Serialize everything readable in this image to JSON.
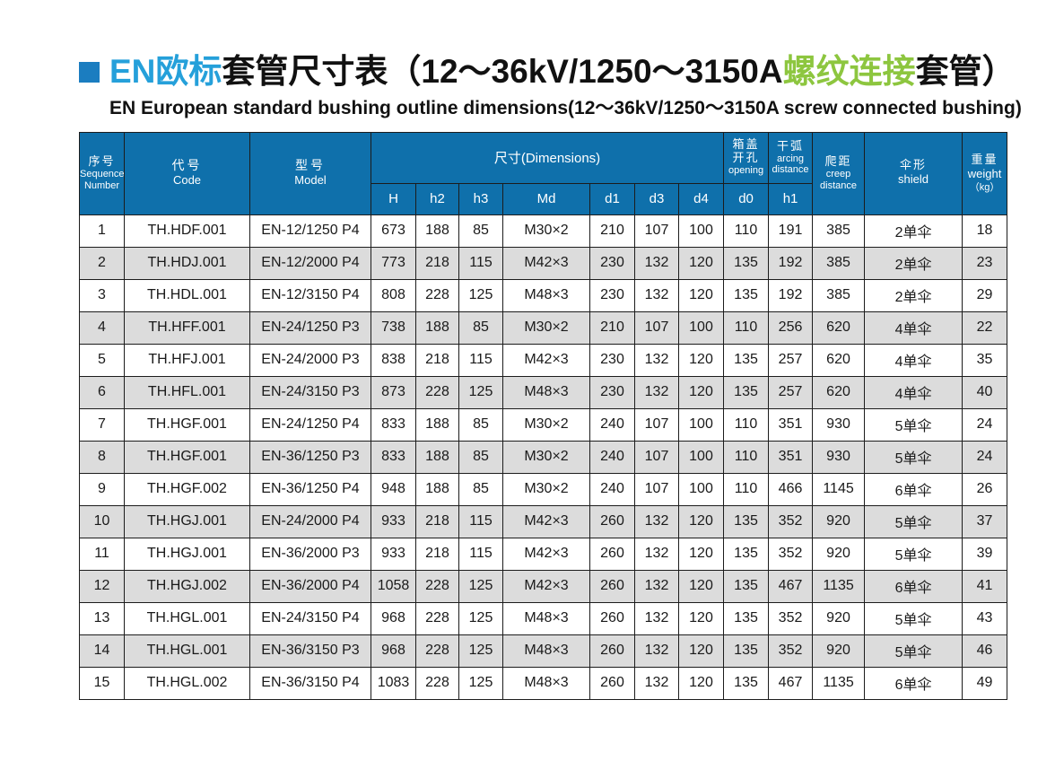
{
  "title": {
    "zh_blue": "EN欧标",
    "zh_black1": "套管尺寸表（12～36kV/1250～3150A",
    "zh_green": "螺纹连接",
    "zh_black2": "套管）",
    "subtitle": "EN European standard bushing outline dimensions(12～36kV/1250～3150A screw connected bushing)"
  },
  "colors": {
    "header_bg": "#0f70ab",
    "title_blue": "#25a0da",
    "title_green": "#8dc63f",
    "bullet_blue": "#1b7dc0",
    "row_alt_bg": "#dcdcdc",
    "border": "#1c1c1c"
  },
  "table": {
    "headers": {
      "sequence_zh": "序号",
      "sequence_en1": "Sequence",
      "sequence_en2": "Number",
      "code_zh": "代号",
      "code_en": "Code",
      "model_zh": "型号",
      "model_en": "Model",
      "dimensions": "尺寸(Dimensions)",
      "opening_zh1": "箱盖",
      "opening_zh2": "开孔",
      "opening_en": "opening",
      "arcing_zh": "干弧",
      "arcing_en1": "arcing",
      "arcing_en2": "distance",
      "creep_zh": "爬距",
      "creep_en1": "creep",
      "creep_en2": "distance",
      "shield_zh": "伞形",
      "shield_en": "shield",
      "weight_zh": "重量",
      "weight_en": "weight",
      "weight_unit": "（kg）",
      "sub": [
        "H",
        "h2",
        "h3",
        "Md",
        "d1",
        "d3",
        "d4",
        "d0",
        "h1"
      ]
    },
    "column_keys": [
      "seq",
      "code",
      "model",
      "H",
      "h2",
      "h3",
      "Md",
      "d1",
      "d3",
      "d4",
      "d0",
      "h1",
      "creep",
      "shield",
      "weight"
    ],
    "rows": [
      [
        "1",
        "TH.HDF.001",
        "EN-12/1250 P4",
        "673",
        "188",
        "85",
        "M30×2",
        "210",
        "107",
        "100",
        "110",
        "191",
        "385",
        "2单伞",
        "18"
      ],
      [
        "2",
        "TH.HDJ.001",
        "EN-12/2000 P4",
        "773",
        "218",
        "115",
        "M42×3",
        "230",
        "132",
        "120",
        "135",
        "192",
        "385",
        "2单伞",
        "23"
      ],
      [
        "3",
        "TH.HDL.001",
        "EN-12/3150 P4",
        "808",
        "228",
        "125",
        "M48×3",
        "230",
        "132",
        "120",
        "135",
        "192",
        "385",
        "2单伞",
        "29"
      ],
      [
        "4",
        "TH.HFF.001",
        "EN-24/1250 P3",
        "738",
        "188",
        "85",
        "M30×2",
        "210",
        "107",
        "100",
        "110",
        "256",
        "620",
        "4单伞",
        "22"
      ],
      [
        "5",
        "TH.HFJ.001",
        "EN-24/2000 P3",
        "838",
        "218",
        "115",
        "M42×3",
        "230",
        "132",
        "120",
        "135",
        "257",
        "620",
        "4单伞",
        "35"
      ],
      [
        "6",
        "TH.HFL.001",
        "EN-24/3150 P3",
        "873",
        "228",
        "125",
        "M48×3",
        "230",
        "132",
        "120",
        "135",
        "257",
        "620",
        "4单伞",
        "40"
      ],
      [
        "7",
        "TH.HGF.001",
        "EN-24/1250 P4",
        "833",
        "188",
        "85",
        "M30×2",
        "240",
        "107",
        "100",
        "110",
        "351",
        "930",
        "5单伞",
        "24"
      ],
      [
        "8",
        "TH.HGF.001",
        "EN-36/1250 P3",
        "833",
        "188",
        "85",
        "M30×2",
        "240",
        "107",
        "100",
        "110",
        "351",
        "930",
        "5单伞",
        "24"
      ],
      [
        "9",
        "TH.HGF.002",
        "EN-36/1250 P4",
        "948",
        "188",
        "85",
        "M30×2",
        "240",
        "107",
        "100",
        "110",
        "466",
        "1145",
        "6单伞",
        "26"
      ],
      [
        "10",
        "TH.HGJ.001",
        "EN-24/2000 P4",
        "933",
        "218",
        "115",
        "M42×3",
        "260",
        "132",
        "120",
        "135",
        "352",
        "920",
        "5单伞",
        "37"
      ],
      [
        "11",
        "TH.HGJ.001",
        "EN-36/2000 P3",
        "933",
        "218",
        "115",
        "M42×3",
        "260",
        "132",
        "120",
        "135",
        "352",
        "920",
        "5单伞",
        "39"
      ],
      [
        "12",
        "TH.HGJ.002",
        "EN-36/2000 P4",
        "1058",
        "228",
        "125",
        "M42×3",
        "260",
        "132",
        "120",
        "135",
        "467",
        "1135",
        "6单伞",
        "41"
      ],
      [
        "13",
        "TH.HGL.001",
        "EN-24/3150 P4",
        "968",
        "228",
        "125",
        "M48×3",
        "260",
        "132",
        "120",
        "135",
        "352",
        "920",
        "5单伞",
        "43"
      ],
      [
        "14",
        "TH.HGL.001",
        "EN-36/3150 P3",
        "968",
        "228",
        "125",
        "M48×3",
        "260",
        "132",
        "120",
        "135",
        "352",
        "920",
        "5单伞",
        "46"
      ],
      [
        "15",
        "TH.HGL.002",
        "EN-36/3150 P4",
        "1083",
        "228",
        "125",
        "M48×3",
        "260",
        "132",
        "120",
        "135",
        "467",
        "1135",
        "6单伞",
        "49"
      ]
    ]
  }
}
